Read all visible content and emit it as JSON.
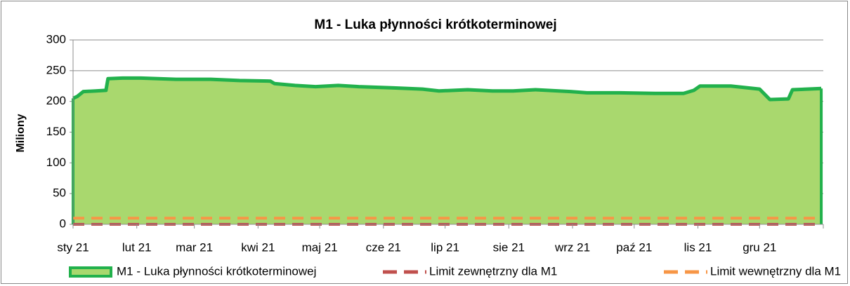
{
  "chart_data": {
    "type": "area",
    "title": "M1 - Luka płynności krótkoterminowej",
    "ylabel": "Miliony",
    "xlim": [
      0,
      365
    ],
    "xticks": [
      {
        "value": 0,
        "label": "sty 21"
      },
      {
        "value": 31,
        "label": "lut 21"
      },
      {
        "value": 59,
        "label": "mar 21"
      },
      {
        "value": 90,
        "label": "kwi 21"
      },
      {
        "value": 120,
        "label": "maj 21"
      },
      {
        "value": 151,
        "label": "cze 21"
      },
      {
        "value": 181,
        "label": "lip 21"
      },
      {
        "value": 212,
        "label": "sie 21"
      },
      {
        "value": 243,
        "label": "wrz 21"
      },
      {
        "value": 273,
        "label": "paź 21"
      },
      {
        "value": 304,
        "label": "lis 21"
      },
      {
        "value": 334,
        "label": "gru 21"
      }
    ],
    "ylim": [
      0,
      300
    ],
    "yticks": [
      0,
      50,
      100,
      150,
      200,
      250,
      300
    ],
    "grid": true,
    "legend": "bottom",
    "series": [
      {
        "name": "M1 - Luka płynności krótkoterminowej",
        "color": "#22b14c",
        "fill": "#a9d86e",
        "x": [
          0,
          2,
          5,
          11,
          16,
          17,
          24,
          33,
          50,
          67,
          81,
          96,
          98,
          108,
          118,
          129,
          139,
          156,
          170,
          178,
          192,
          204,
          214,
          225,
          242,
          250,
          266,
          283,
          297,
          302,
          305,
          320,
          334,
          339,
          348,
          350,
          364
        ],
        "values": [
          205,
          208,
          216,
          217,
          218,
          237,
          238,
          238,
          236,
          236,
          234,
          233,
          229,
          226,
          224,
          226,
          224,
          222,
          220,
          217,
          219,
          217,
          217,
          219,
          216,
          214,
          214,
          213,
          213,
          218,
          225,
          225,
          220,
          203,
          204,
          219,
          221
        ]
      },
      {
        "name": "Limit zewnętrzny dla M1",
        "color": "#c0504d",
        "x": [
          0,
          364
        ],
        "values": [
          0,
          0
        ]
      },
      {
        "name": "Limit wewnętrzny dla M1",
        "color": "#f79646",
        "x": [
          0,
          364
        ],
        "values": [
          10,
          10
        ]
      }
    ]
  }
}
